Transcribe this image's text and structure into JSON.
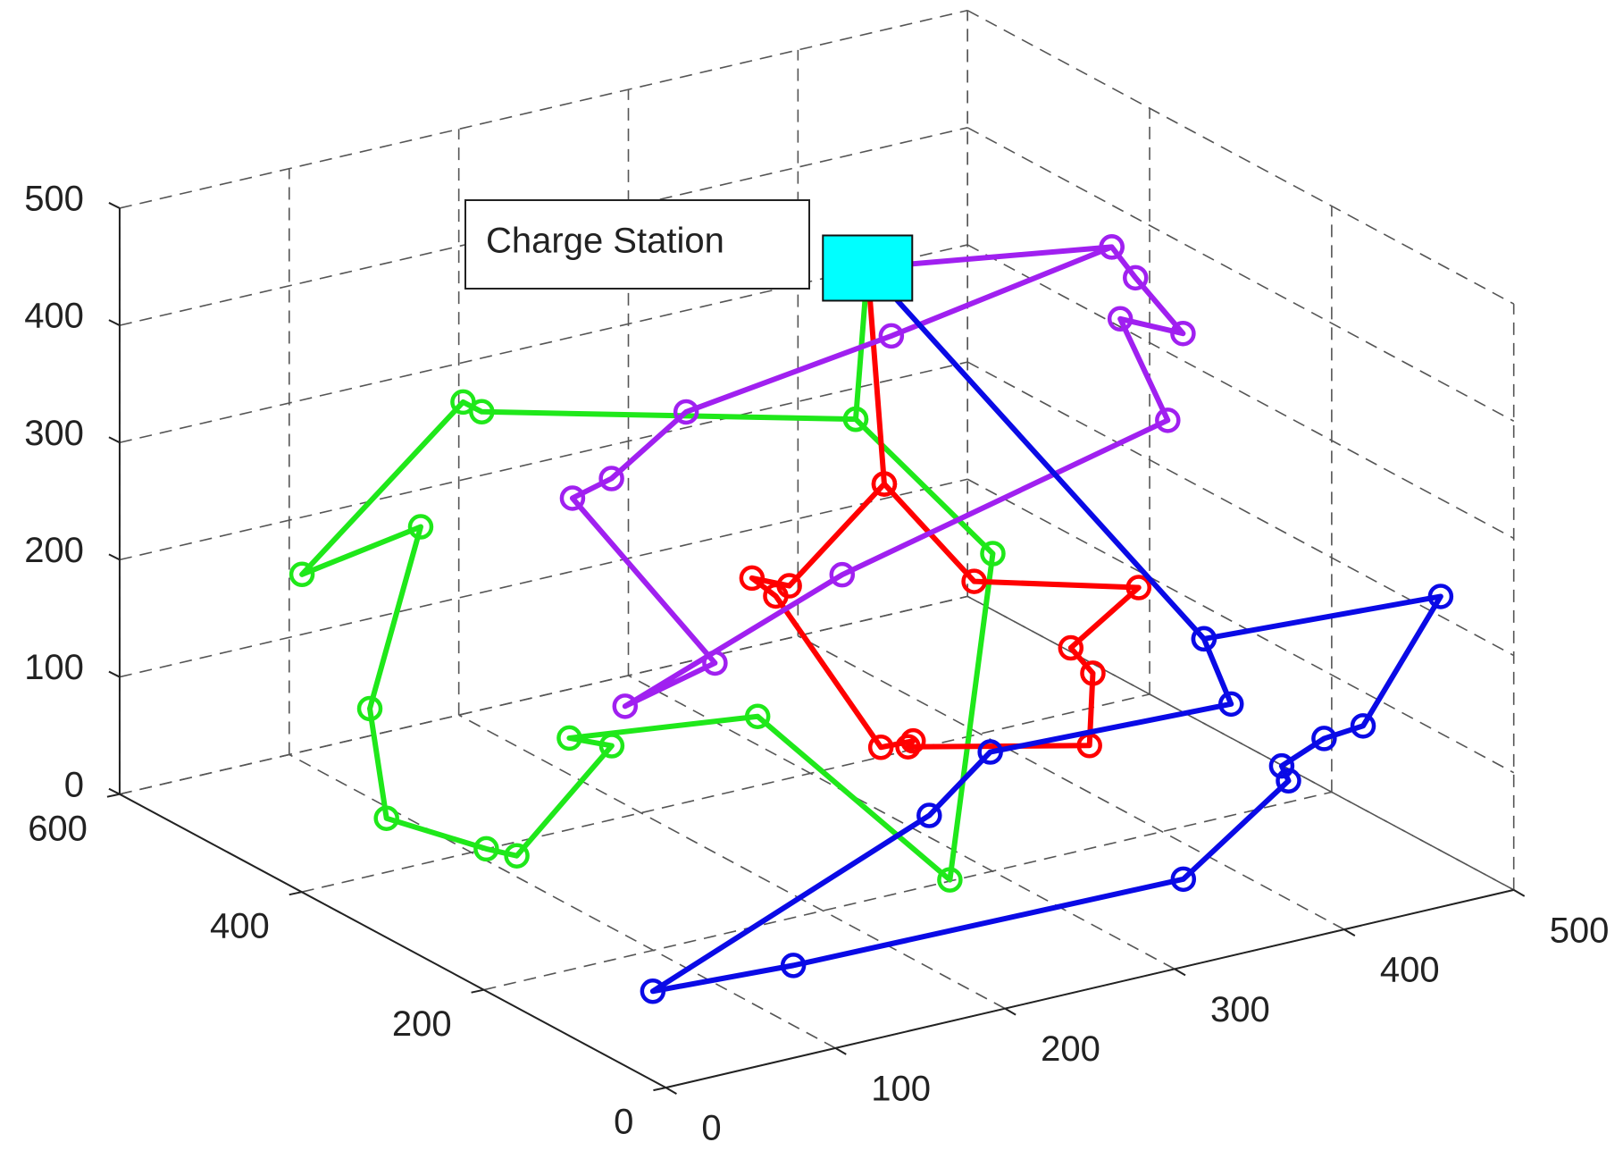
{
  "chart_data": {
    "type": "line3d",
    "annotation": "Charge Station",
    "xlim": [
      0,
      500
    ],
    "ylim": [
      0,
      600
    ],
    "zlim": [
      0,
      500
    ],
    "xticks": [
      0,
      100,
      200,
      300,
      400,
      500
    ],
    "yticks": [
      0,
      200,
      400,
      600
    ],
    "zticks": [
      0,
      100,
      200,
      300,
      400,
      500
    ],
    "grid": true,
    "station_color": "#00ffff",
    "series": [
      {
        "color": "#1fe81a",
        "x": [
          280,
          273,
          133,
          122,
          27,
          97,
          67,
          50,
          82,
          100,
          156,
          131,
          242,
          248,
          327,
          273,
          280
        ],
        "y": [
          300,
          300,
          450,
          450,
          450,
          450,
          450,
          400,
          350,
          350,
          350,
          350,
          350,
          150,
          250,
          300,
          300
        ],
        "z": [
          480,
          353,
          344,
          356,
          241,
          258,
          113,
          46,
          30,
          18,
          93,
          108,
          89,
          31,
          241,
          353,
          480
        ]
      },
      {
        "color": "#ff0000",
        "x": [
          280,
          263,
          316,
          413,
          373,
          386,
          384,
          277,
          280,
          261,
          199,
          185,
          207,
          263,
          280
        ],
        "y": [
          300,
          250,
          250,
          250,
          250,
          250,
          250,
          250,
          250,
          250,
          250,
          250,
          250,
          250,
          300
        ],
        "z": [
          480,
          322,
          221,
          183,
          145,
          119,
          58,
          93,
          97,
          98,
          248,
          268,
          254,
          322,
          480
        ]
      },
      {
        "color": "#a020f0",
        "x": [
          280,
          424,
          294,
          173,
          129,
          106,
          190,
          137,
          265,
          457,
          429,
          466,
          438,
          424,
          280
        ],
        "y": [
          300,
          300,
          300,
          300,
          300,
          300,
          300,
          300,
          300,
          300,
          300,
          300,
          300,
          300,
          300
        ],
        "z": [
          480,
          449,
          417,
          393,
          351,
          342,
          173,
          154,
          223,
          290,
          386,
          361,
          418,
          449,
          480
        ]
      },
      {
        "color": "#0a0ae6",
        "x": [
          280,
          371,
          473,
          438,
          415,
          390,
          394,
          332,
          102,
          46,
          209,
          245,
          387,
          371,
          280
        ],
        "y": [
          300,
          100,
          30,
          50,
          50,
          50,
          50,
          50,
          50,
          100,
          100,
          100,
          100,
          100,
          300
        ],
        "z": [
          480,
          216,
          247,
          140,
          137,
          122,
          108,
          45,
          49,
          25,
          120,
          162,
          155,
          216,
          480
        ]
      }
    ]
  }
}
